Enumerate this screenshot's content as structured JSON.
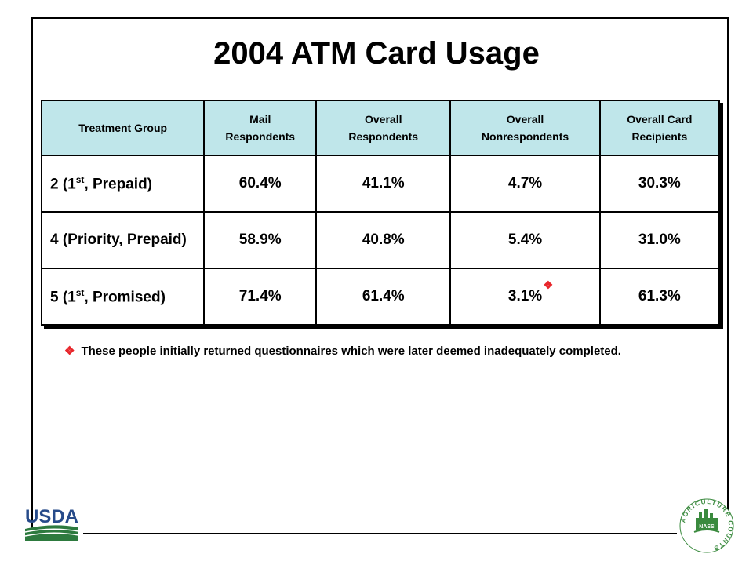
{
  "title": "2004 ATM Card Usage",
  "table": {
    "headers": [
      {
        "line1": "Treatment Group",
        "line2": ""
      },
      {
        "line1": "Mail",
        "line2": "Respondents"
      },
      {
        "line1": "Overall",
        "line2": "Respondents"
      },
      {
        "line1": "Overall",
        "line2": "Nonrespondents"
      },
      {
        "line1": "Overall Card",
        "line2": "Recipients"
      }
    ],
    "rows": [
      {
        "group_pre": "2 (1",
        "group_sup": "st",
        "group_post": ", Prepaid)",
        "mail": "60.4%",
        "overall": "41.1%",
        "nonresp": "4.7%",
        "recipients": "30.3%"
      },
      {
        "group_pre": "4 (Priority, Prepaid)",
        "group_sup": "",
        "group_post": "",
        "mail": "58.9%",
        "overall": "40.8%",
        "nonresp": "5.4%",
        "recipients": "31.0%"
      },
      {
        "group_pre": "5 (1",
        "group_sup": "st",
        "group_post": ", Promised)",
        "mail": "71.4%",
        "overall": "61.4%",
        "nonresp": "3.1%",
        "recipients": "61.3%"
      }
    ],
    "marker_symbol": "❖"
  },
  "footnote": {
    "bullet": "❖",
    "text": "These people initially returned questionnaires which were later deemed inadequately completed."
  },
  "logos": {
    "usda": "USDA",
    "nass_ring": "AGRICULTURE COUNTS",
    "nass_badge": "NASS"
  },
  "colors": {
    "header_bg": "#bfe6ea",
    "marker": "#e8262b",
    "usda_green": "#2d7a3e",
    "usda_blue": "#274b8a",
    "nass_green": "#3a8a3e"
  }
}
